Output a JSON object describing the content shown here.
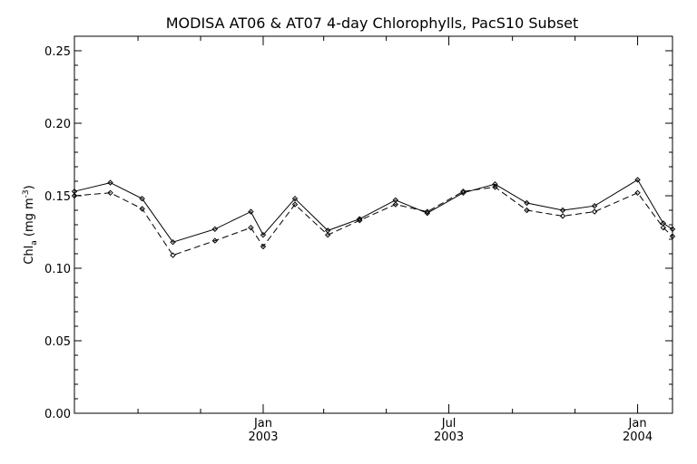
{
  "chart_data": {
    "type": "line",
    "title": "MODISA AT06 & AT07 4-day Chlorophylls, PacS10 Subset",
    "ylabel": "Chl",
    "ylabel_sub": "a",
    "ylabel_units": " (mg m",
    "ylabel_exp": "-3",
    "ylabel_close": ")",
    "ylim": [
      0.0,
      0.26
    ],
    "y_ticks": [
      "0.00",
      "0.05",
      "0.10",
      "0.15",
      "0.20",
      "0.25"
    ],
    "x_range": [
      "2002-07-01",
      "2004-02-04"
    ],
    "x_major_ticks": [
      {
        "date": "2003-01-01",
        "month": "Jan",
        "year": "2003"
      },
      {
        "date": "2003-07-01",
        "month": "Jul",
        "year": "2003"
      },
      {
        "date": "2004-01-01",
        "month": "Jan",
        "year": "2004"
      }
    ],
    "x_minor_ticks": [
      "2002-09-01",
      "2002-11-01",
      "2003-03-01",
      "2003-05-01",
      "2003-09-01",
      "2003-11-01"
    ],
    "grid": false,
    "series": [
      {
        "line_style": "solid",
        "points": [
          {
            "x": "2002-07-01",
            "y": 0.153
          },
          {
            "x": "2002-08-05",
            "y": 0.159
          },
          {
            "x": "2002-09-05",
            "y": 0.148
          },
          {
            "x": "2002-10-05",
            "y": 0.118
          },
          {
            "x": "2002-11-15",
            "y": 0.127
          },
          {
            "x": "2002-12-20",
            "y": 0.139
          },
          {
            "x": "2003-01-01",
            "y": 0.123
          },
          {
            "x": "2003-02-01",
            "y": 0.148
          },
          {
            "x": "2003-03-05",
            "y": 0.126
          },
          {
            "x": "2003-04-05",
            "y": 0.134
          },
          {
            "x": "2003-05-10",
            "y": 0.147
          },
          {
            "x": "2003-06-10",
            "y": 0.138
          },
          {
            "x": "2003-07-15",
            "y": 0.152
          },
          {
            "x": "2003-08-15",
            "y": 0.158
          },
          {
            "x": "2003-09-15",
            "y": 0.145
          },
          {
            "x": "2003-10-20",
            "y": 0.14
          },
          {
            "x": "2003-11-20",
            "y": 0.143
          },
          {
            "x": "2004-01-01",
            "y": 0.161
          },
          {
            "x": "2004-01-26",
            "y": 0.131
          },
          {
            "x": "2004-02-04",
            "y": 0.127
          }
        ]
      },
      {
        "line_style": "dashed",
        "points": [
          {
            "x": "2002-07-01",
            "y": 0.15
          },
          {
            "x": "2002-08-05",
            "y": 0.152
          },
          {
            "x": "2002-09-05",
            "y": 0.141
          },
          {
            "x": "2002-10-05",
            "y": 0.109
          },
          {
            "x": "2002-11-15",
            "y": 0.119
          },
          {
            "x": "2002-12-20",
            "y": 0.128
          },
          {
            "x": "2003-01-01",
            "y": 0.115
          },
          {
            "x": "2003-02-01",
            "y": 0.144
          },
          {
            "x": "2003-03-05",
            "y": 0.123
          },
          {
            "x": "2003-04-05",
            "y": 0.133
          },
          {
            "x": "2003-05-10",
            "y": 0.144
          },
          {
            "x": "2003-06-10",
            "y": 0.139
          },
          {
            "x": "2003-07-15",
            "y": 0.153
          },
          {
            "x": "2003-08-15",
            "y": 0.156
          },
          {
            "x": "2003-09-15",
            "y": 0.14
          },
          {
            "x": "2003-10-20",
            "y": 0.136
          },
          {
            "x": "2003-11-20",
            "y": 0.139
          },
          {
            "x": "2004-01-01",
            "y": 0.152
          },
          {
            "x": "2004-01-26",
            "y": 0.128
          },
          {
            "x": "2004-02-04",
            "y": 0.122
          }
        ]
      }
    ]
  }
}
